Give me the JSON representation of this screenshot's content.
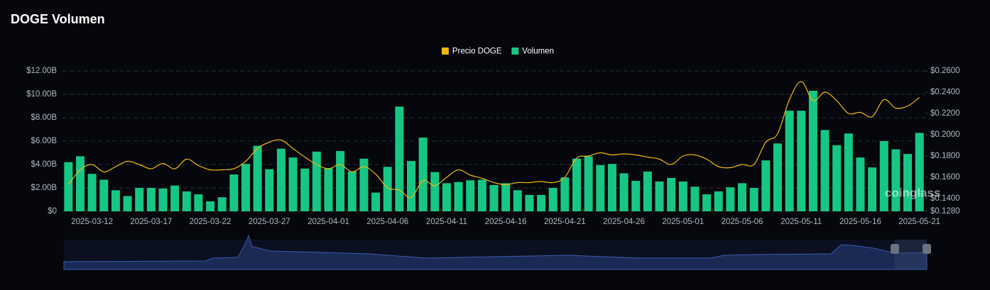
{
  "chart_data": {
    "type": "bar-line",
    "title": "DOGE Volumen",
    "watermark": "coinglass",
    "categories": [
      null,
      null,
      "2025-03-12",
      null,
      null,
      null,
      null,
      "2025-03-17",
      null,
      null,
      null,
      null,
      "2025-03-22",
      null,
      null,
      null,
      null,
      "2025-03-27",
      null,
      null,
      null,
      null,
      "2025-04-01",
      null,
      null,
      null,
      null,
      "2025-04-06",
      null,
      null,
      null,
      null,
      "2025-04-11",
      null,
      null,
      null,
      null,
      "2025-04-16",
      null,
      null,
      null,
      null,
      "2025-04-21",
      null,
      null,
      null,
      null,
      "2025-04-26",
      null,
      null,
      null,
      null,
      "2025-05-01",
      null,
      null,
      null,
      null,
      "2025-05-06",
      null,
      null,
      null,
      null,
      "2025-05-11",
      null,
      null,
      null,
      null,
      "2025-05-16",
      null,
      null,
      null,
      null,
      "2025-05-21"
    ],
    "series": [
      {
        "name": "Precio DOGE",
        "color": "#f0b90b",
        "kind": "line",
        "axis": "y2",
        "values": [
          0.153,
          0.167,
          0.172,
          0.165,
          0.17,
          0.175,
          0.172,
          0.168,
          0.173,
          0.168,
          0.177,
          0.171,
          0.167,
          0.167,
          0.168,
          0.175,
          0.187,
          0.193,
          0.195,
          0.187,
          0.179,
          0.172,
          0.168,
          0.172,
          0.165,
          0.17,
          0.163,
          0.15,
          0.148,
          0.141,
          0.157,
          0.152,
          0.16,
          0.167,
          0.162,
          0.159,
          0.155,
          0.153,
          0.155,
          0.155,
          0.156,
          0.155,
          0.16,
          0.178,
          0.18,
          0.183,
          0.181,
          0.182,
          0.181,
          0.179,
          0.177,
          0.172,
          0.18,
          0.181,
          0.177,
          0.17,
          0.169,
          0.172,
          0.172,
          0.193,
          0.201,
          0.233,
          0.25,
          0.232,
          0.24,
          0.232,
          0.22,
          0.221,
          0.217,
          0.233,
          0.225,
          0.227,
          0.235
        ]
      },
      {
        "name": "Volumen",
        "color": "#16c784",
        "kind": "bar",
        "values": [
          4200000000,
          4700000000,
          3200000000,
          2700000000,
          1800000000,
          1300000000,
          2000000000,
          2000000000,
          1950000000,
          2200000000,
          1700000000,
          1450000000,
          850000000,
          1200000000,
          3150000000,
          4050000000,
          5600000000,
          3600000000,
          5350000000,
          4600000000,
          3650000000,
          5100000000,
          3700000000,
          5150000000,
          3400000000,
          4500000000,
          1600000000,
          3800000000,
          8950000000,
          4300000000,
          6300000000,
          3350000000,
          2400000000,
          2500000000,
          2650000000,
          2700000000,
          2250000000,
          2400000000,
          1800000000,
          1400000000,
          1400000000,
          2000000000,
          2900000000,
          4500000000,
          4700000000,
          3950000000,
          4050000000,
          3250000000,
          2600000000,
          3400000000,
          2550000000,
          2850000000,
          2550000000,
          2100000000,
          1450000000,
          1700000000,
          2050000000,
          2400000000,
          2000000000,
          4350000000,
          5800000000,
          8600000000,
          8600000000,
          10300000000,
          6950000000,
          5650000000,
          6650000000,
          4600000000,
          3750000000,
          6000000000,
          5300000000,
          4900000000,
          6700000000
        ]
      }
    ],
    "ylim": [
      0,
      12000000000
    ],
    "yticks": [
      {
        "value": 0,
        "label": "$0"
      },
      {
        "value": 2000000000,
        "label": "$2.00B"
      },
      {
        "value": 4000000000,
        "label": "$4.00B"
      },
      {
        "value": 6000000000,
        "label": "$6.00B"
      },
      {
        "value": 8000000000,
        "label": "$8.00B"
      },
      {
        "value": 10000000000,
        "label": "$10.00B"
      },
      {
        "value": 12000000000,
        "label": "$12.00B"
      }
    ],
    "y2lim": [
      0.128,
      0.26
    ],
    "y2ticks": [
      {
        "value": 0.128,
        "label": "$0.1280"
      },
      {
        "value": 0.14,
        "label": "$0.1400"
      },
      {
        "value": 0.16,
        "label": "$0.1600"
      },
      {
        "value": 0.18,
        "label": "$0.1800"
      },
      {
        "value": 0.2,
        "label": "$0.2000"
      },
      {
        "value": 0.22,
        "label": "$0.2200"
      },
      {
        "value": 0.24,
        "label": "$0.2400"
      },
      {
        "value": 0.26,
        "label": "$0.2600"
      }
    ],
    "grid": true,
    "legend": "top"
  }
}
